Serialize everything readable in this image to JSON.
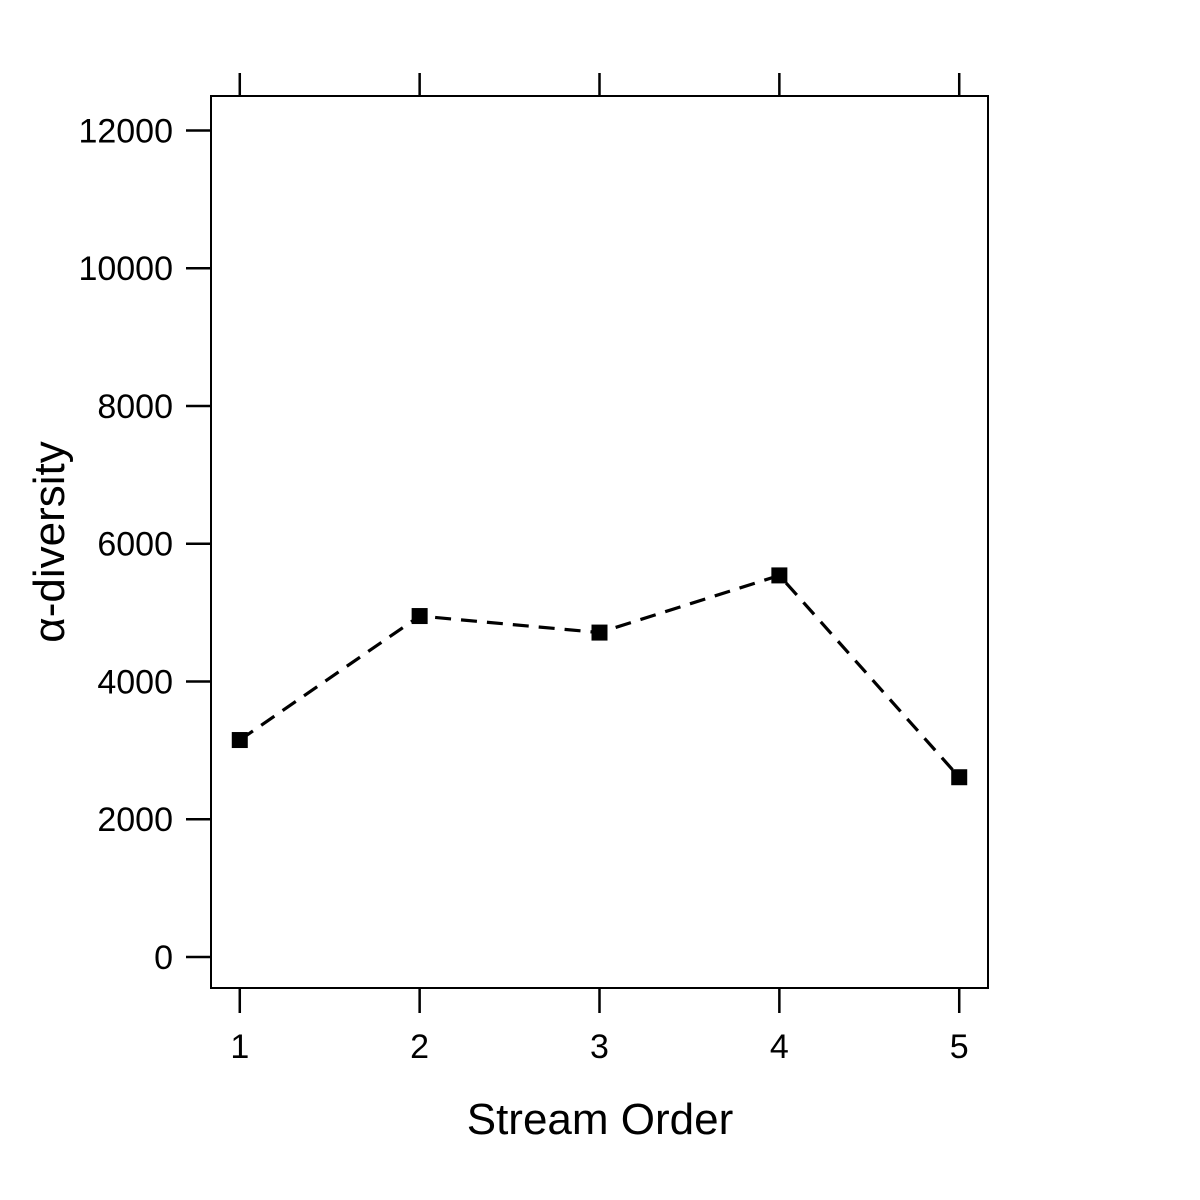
{
  "chart_data": {
    "type": "line",
    "xlabel": "Stream Order",
    "ylabel": "α-diversity",
    "x": [
      1,
      2,
      3,
      4,
      5
    ],
    "series": [
      {
        "values": [
          3150,
          4950,
          4710,
          5540,
          2610
        ],
        "line_style": "dashed",
        "marker": "filled-square",
        "color": "#000000"
      }
    ],
    "x_ticks": [
      "1",
      "2",
      "3",
      "4",
      "5"
    ],
    "y_ticks": [
      "0",
      "2000",
      "4000",
      "6000",
      "8000",
      "10000",
      "12000"
    ],
    "xlim": [
      0.84,
      5.16
    ],
    "ylim": [
      -450,
      12500
    ],
    "grid": false,
    "ticks_mirrored_top": true
  }
}
